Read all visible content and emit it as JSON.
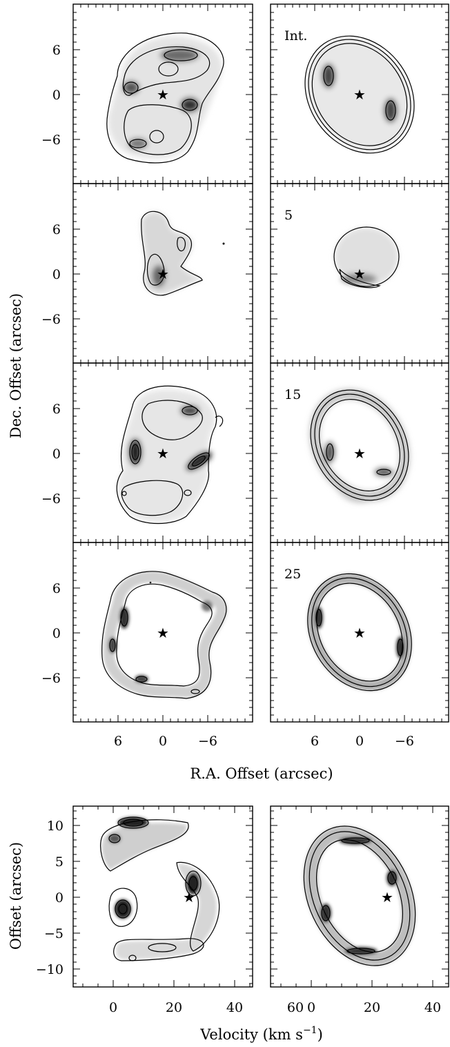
{
  "figure": {
    "channel_panels": {
      "y_axis_title": "Dec. Offset (arcsec)",
      "x_axis_title": "R.A. Offset (arcsec)",
      "x_tick_labels": [
        "6",
        "0",
        "−6"
      ],
      "y_tick_labels": [
        "6",
        "0",
        "−6"
      ],
      "rows": [
        {
          "left_label": "",
          "right_label": "Int."
        },
        {
          "left_label": "",
          "right_label": "5"
        },
        {
          "left_label": "",
          "right_label": "15"
        },
        {
          "left_label": "",
          "right_label": "25"
        }
      ]
    },
    "pv_panels": {
      "y_axis_title": "Offset (arcsec)",
      "x_axis_title": "Velocity (km s",
      "x_axis_title_sup": "−1",
      "x_axis_title_close": ")",
      "x_tick_labels": [
        "0",
        "20",
        "40",
        "60"
      ],
      "y_tick_labels": [
        "10",
        "5",
        "0",
        "−5",
        "−10"
      ]
    },
    "star_symbol": "★",
    "colors": {
      "ink": "#000000",
      "shade_light": "#e6e6e6",
      "shade_mid": "#a6a6a6",
      "shade_dark": "#333333"
    }
  }
}
